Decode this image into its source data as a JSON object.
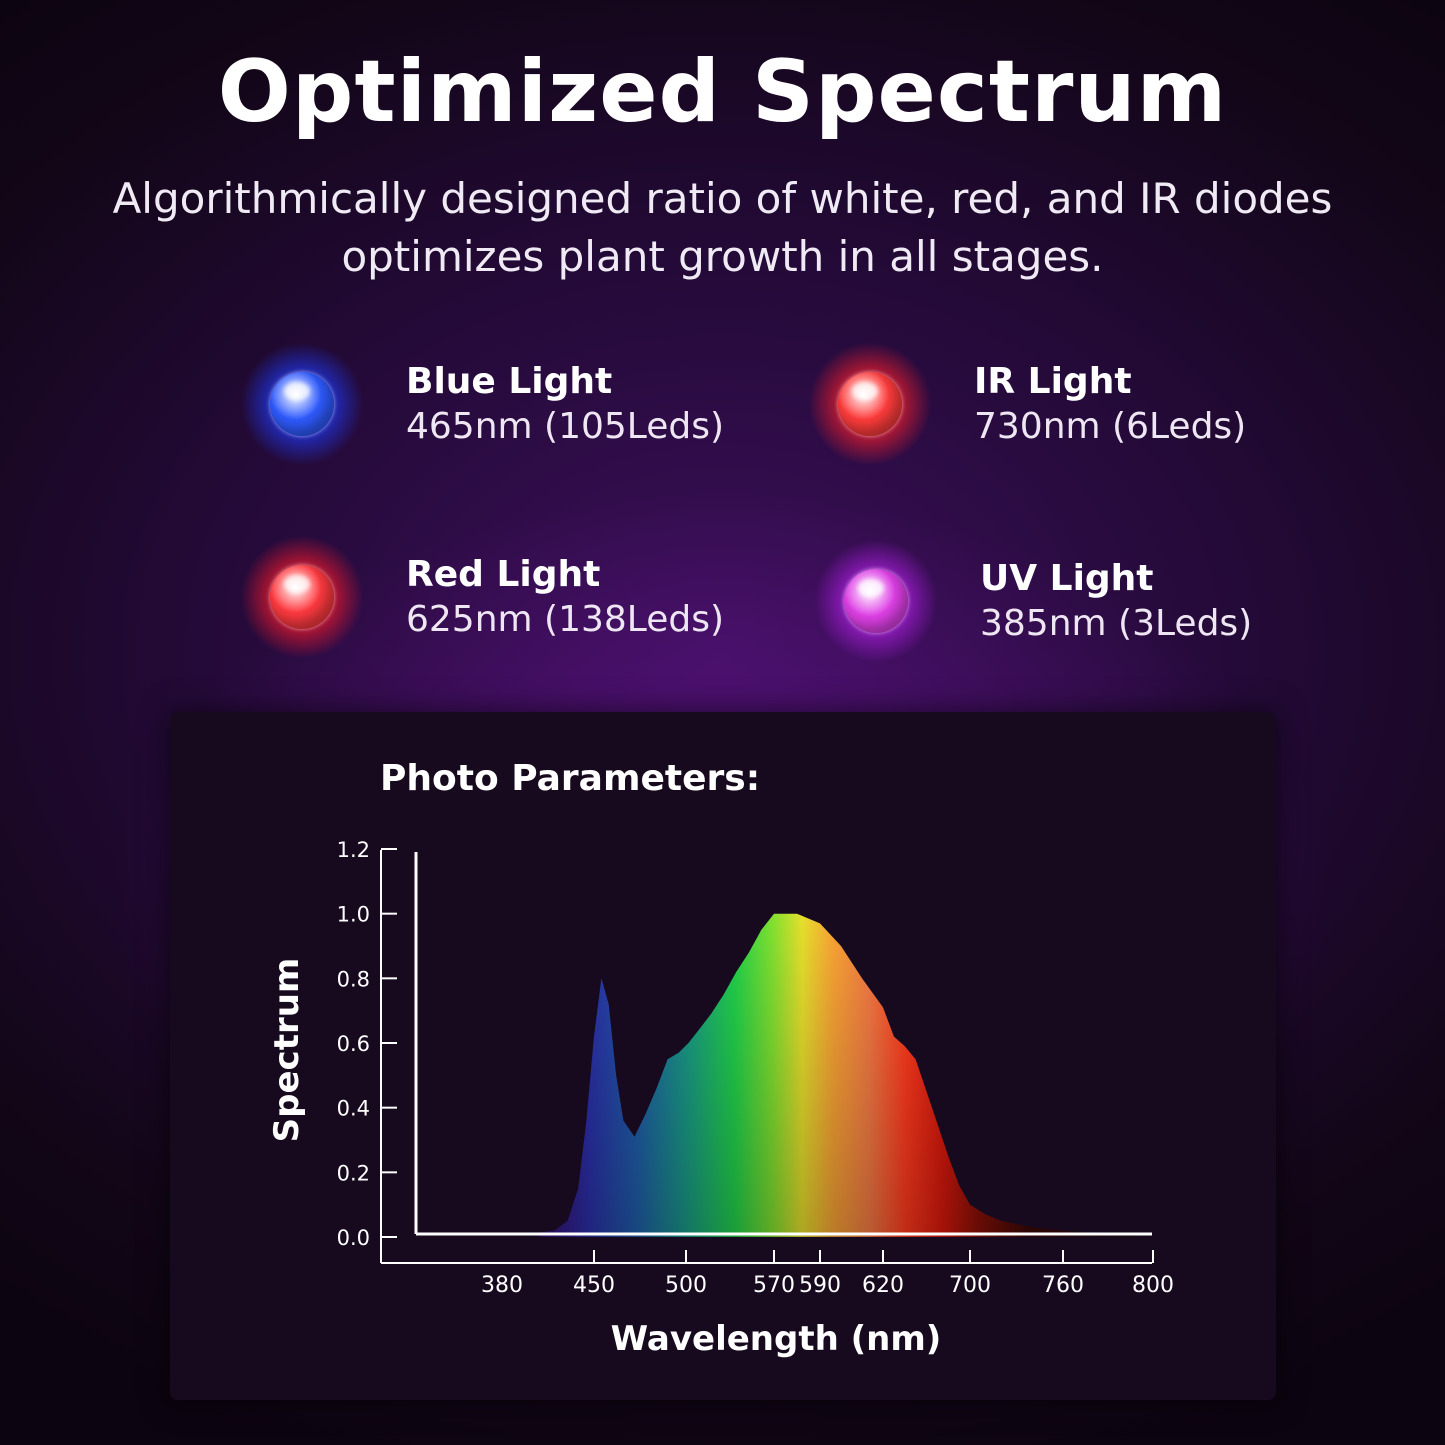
{
  "header": {
    "title": "Optimized Spectrum",
    "subtitle_line1": "Algorithmically designed ratio of white, red, and IR diodes",
    "subtitle_line2": "optimizes plant growth in all stages."
  },
  "leds": [
    {
      "name": "Blue Light",
      "spec": "465nm (105Leds)",
      "color": "#2f5bff",
      "glow": "#1f3cff"
    },
    {
      "name": "IR Light",
      "spec": "730nm (6Leds)",
      "color": "#ff3c3c",
      "glow": "#ff1f2a"
    },
    {
      "name": "Red Light",
      "spec": "625nm (138Leds)",
      "color": "#ff3a40",
      "glow": "#ff1a2a"
    },
    {
      "name": "UV Light",
      "spec": "385nm (3Leds)",
      "color": "#e040e8",
      "glow": "#b21fe6"
    }
  ],
  "panel": {
    "title": "Photo Parameters:"
  },
  "chart_data": {
    "type": "area",
    "xlabel": "Wavelength (nm)",
    "ylabel": "Spectrum",
    "ylim": [
      0.0,
      1.2
    ],
    "yticks": [
      "0.0",
      "0.2",
      "0.4",
      "0.6",
      "0.8",
      "1.0",
      "1.2"
    ],
    "xticks": [
      "380",
      "450",
      "500",
      "570",
      "590",
      "620",
      "700",
      "760",
      "800"
    ],
    "series": [
      {
        "x": [
          380,
          400,
          420,
          430,
          438,
          444,
          450,
          454,
          458,
          462,
          466,
          472,
          478,
          484,
          490,
          496,
          502,
          510,
          520,
          530,
          540,
          550,
          560,
          570,
          580,
          590,
          600,
          610,
          620,
          630,
          640,
          650,
          660,
          670,
          680,
          690,
          700,
          710,
          720,
          740,
          760,
          780,
          800
        ],
        "y": [
          0.0,
          0.01,
          0.02,
          0.05,
          0.15,
          0.35,
          0.62,
          0.8,
          0.72,
          0.5,
          0.36,
          0.31,
          0.38,
          0.46,
          0.55,
          0.57,
          0.6,
          0.64,
          0.69,
          0.75,
          0.82,
          0.88,
          0.95,
          1.0,
          1.0,
          0.97,
          0.9,
          0.8,
          0.71,
          0.62,
          0.59,
          0.55,
          0.45,
          0.35,
          0.25,
          0.16,
          0.1,
          0.07,
          0.05,
          0.03,
          0.02,
          0.01,
          0.0
        ]
      }
    ]
  }
}
